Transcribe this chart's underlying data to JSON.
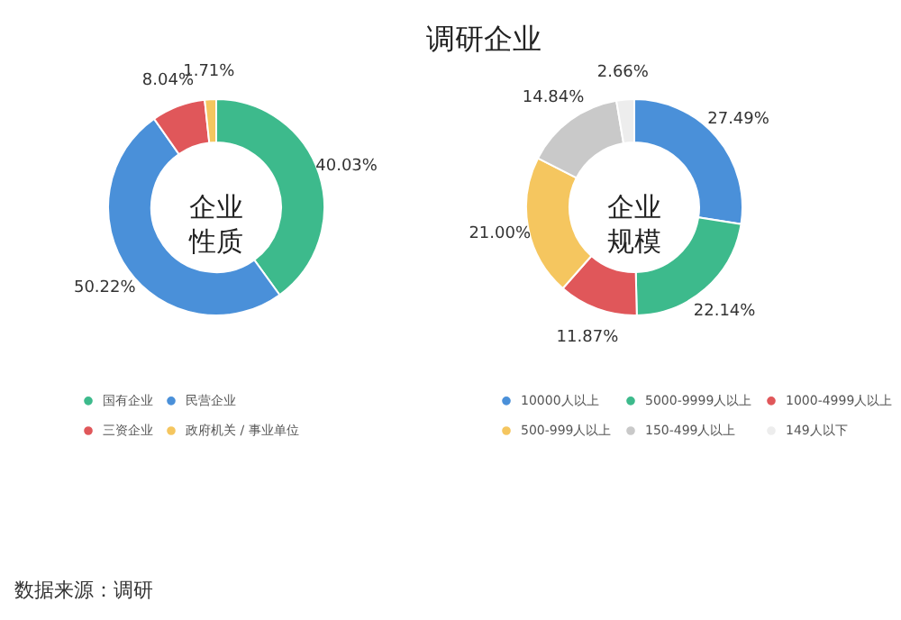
{
  "chart_data": [
    {
      "type": "donut",
      "title": "调研企业",
      "categories": [
        "国有企业",
        "民营企业",
        "三资企业",
        "政府机关 / 事业单位"
      ],
      "values": [
        40.03,
        50.22,
        8.04,
        1.71
      ],
      "colors": [
        "#3dba8c",
        "#4a90d9",
        "#e0575a",
        "#f5c65f"
      ],
      "value_labels": [
        "40.03%",
        "50.22%",
        "8.04%",
        "1.71%"
      ],
      "annotations": [
        "企业性质",
        "数据来源：调研"
      ],
      "legend": "bottom"
    },
    {
      "type": "donut",
      "categories": [
        "10000人以上",
        "5000-9999人以上",
        "1000-4999人以上",
        "500-999人以上",
        "150-499人以上",
        "149人以下"
      ],
      "values": [
        27.49,
        22.14,
        11.87,
        21.0,
        14.84,
        2.66
      ],
      "colors": [
        "#4a90d9",
        "#3dba8c",
        "#e0575a",
        "#f5c65f",
        "#c9c9c9",
        "#ededed"
      ],
      "value_labels": [
        "27.49%",
        "22.14%",
        "11.87%",
        "21.00%",
        "14.84%",
        "2.66%"
      ],
      "annotations": [
        "企业规模"
      ],
      "legend": "bottom"
    }
  ]
}
